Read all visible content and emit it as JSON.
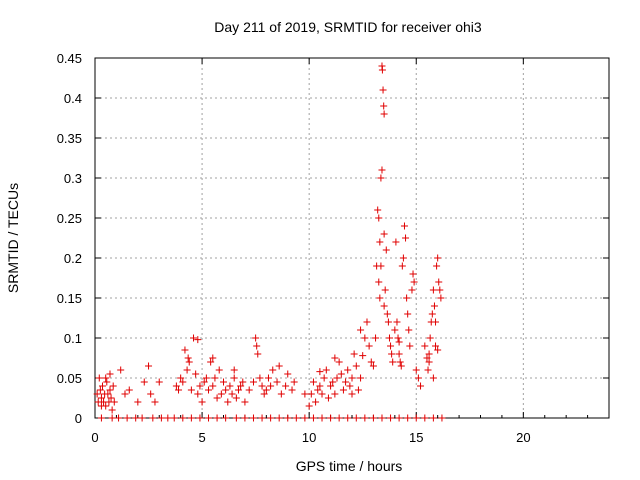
{
  "chart_data": {
    "type": "scatter",
    "title": "Day 211 of 2019, SRMTID for receiver ohi3",
    "xlabel": "GPS time / hours",
    "ylabel": "SRMTID / TECUs",
    "xlim": [
      0,
      24
    ],
    "ylim": [
      0,
      0.45
    ],
    "xticks": [
      0,
      5,
      10,
      15,
      20
    ],
    "yticks": [
      0,
      0.05,
      0.1,
      0.15,
      0.2,
      0.25,
      0.3,
      0.35,
      0.4,
      0.45
    ],
    "xtick_labels": [
      "0",
      "5",
      "10",
      "15",
      "20"
    ],
    "ytick_labels": [
      "0",
      "0.05",
      "0.1",
      "0.15",
      "0.2",
      "0.25",
      "0.3",
      "0.35",
      "0.4",
      "0.45"
    ],
    "grid": true,
    "marker": "+",
    "color": "#e00000",
    "series": [
      {
        "name": "SRMTID",
        "points": [
          [
            0.1,
            0.03
          ],
          [
            0.15,
            0.02
          ],
          [
            0.2,
            0.05
          ],
          [
            0.25,
            0.035
          ],
          [
            0.3,
            0.025
          ],
          [
            0.35,
            0.04
          ],
          [
            0.4,
            0.02
          ],
          [
            0.45,
            0.03
          ],
          [
            0.5,
            0.015
          ],
          [
            0.55,
            0.045
          ],
          [
            0.6,
            0.03
          ],
          [
            0.65,
            0.02
          ],
          [
            0.7,
            0.035
          ],
          [
            0.75,
            0.025
          ],
          [
            0.8,
            0.01
          ],
          [
            0.85,
            0.04
          ],
          [
            0.9,
            0.02
          ],
          [
            0.3,
            0.015
          ],
          [
            0.5,
            0.05
          ],
          [
            0.7,
            0.055
          ],
          [
            1.2,
            0.06
          ],
          [
            1.4,
            0.03
          ],
          [
            1.6,
            0.035
          ],
          [
            2.0,
            0.02
          ],
          [
            2.3,
            0.045
          ],
          [
            2.5,
            0.065
          ],
          [
            2.6,
            0.03
          ],
          [
            2.8,
            0.02
          ],
          [
            3.0,
            0.045
          ],
          [
            3.8,
            0.04
          ],
          [
            3.9,
            0.035
          ],
          [
            4.0,
            0.05
          ],
          [
            4.1,
            0.045
          ],
          [
            4.2,
            0.085
          ],
          [
            4.3,
            0.06
          ],
          [
            4.35,
            0.075
          ],
          [
            4.4,
            0.07
          ],
          [
            4.5,
            0.035
          ],
          [
            4.6,
            0.1
          ],
          [
            4.7,
            0.055
          ],
          [
            4.8,
            0.03
          ],
          [
            4.9,
            0.04
          ],
          [
            5.0,
            0.02
          ],
          [
            4.8,
            0.098
          ],
          [
            5.1,
            0.045
          ],
          [
            5.2,
            0.05
          ],
          [
            5.3,
            0.035
          ],
          [
            5.4,
            0.07
          ],
          [
            5.5,
            0.04
          ],
          [
            5.6,
            0.05
          ],
          [
            5.7,
            0.025
          ],
          [
            5.8,
            0.06
          ],
          [
            5.9,
            0.03
          ],
          [
            6.0,
            0.045
          ],
          [
            6.1,
            0.035
          ],
          [
            6.2,
            0.02
          ],
          [
            6.3,
            0.04
          ],
          [
            6.4,
            0.03
          ],
          [
            6.5,
            0.05
          ],
          [
            6.6,
            0.025
          ],
          [
            6.7,
            0.035
          ],
          [
            6.8,
            0.04
          ],
          [
            6.9,
            0.045
          ],
          [
            7.0,
            0.02
          ],
          [
            6.5,
            0.06
          ],
          [
            5.5,
            0.075
          ],
          [
            7.2,
            0.035
          ],
          [
            7.4,
            0.045
          ],
          [
            7.5,
            0.1
          ],
          [
            7.55,
            0.09
          ],
          [
            7.6,
            0.08
          ],
          [
            7.7,
            0.05
          ],
          [
            7.8,
            0.04
          ],
          [
            7.9,
            0.03
          ],
          [
            8.0,
            0.035
          ],
          [
            8.1,
            0.05
          ],
          [
            8.2,
            0.04
          ],
          [
            8.3,
            0.06
          ],
          [
            8.5,
            0.045
          ],
          [
            8.7,
            0.03
          ],
          [
            8.9,
            0.04
          ],
          [
            9.0,
            0.055
          ],
          [
            9.2,
            0.035
          ],
          [
            9.3,
            0.045
          ],
          [
            8.6,
            0.065
          ],
          [
            9.8,
            0.03
          ],
          [
            10.0,
            0.015
          ],
          [
            10.1,
            0.03
          ],
          [
            10.2,
            0.045
          ],
          [
            10.3,
            0.02
          ],
          [
            10.4,
            0.035
          ],
          [
            10.5,
            0.04
          ],
          [
            10.6,
            0.03
          ],
          [
            10.7,
            0.05
          ],
          [
            10.8,
            0.06
          ],
          [
            10.9,
            0.025
          ],
          [
            11.0,
            0.04
          ],
          [
            11.1,
            0.045
          ],
          [
            11.2,
            0.03
          ],
          [
            11.3,
            0.05
          ],
          [
            11.4,
            0.07
          ],
          [
            11.5,
            0.055
          ],
          [
            11.6,
            0.035
          ],
          [
            11.7,
            0.045
          ],
          [
            11.8,
            0.06
          ],
          [
            11.9,
            0.04
          ],
          [
            12.0,
            0.05
          ],
          [
            12.1,
            0.08
          ],
          [
            12.2,
            0.065
          ],
          [
            12.3,
            0.035
          ],
          [
            12.4,
            0.05
          ],
          [
            12.5,
            0.078
          ],
          [
            12.6,
            0.1
          ],
          [
            12.7,
            0.12
          ],
          [
            12.8,
            0.09
          ],
          [
            12.9,
            0.07
          ],
          [
            13.0,
            0.065
          ],
          [
            12.4,
            0.11
          ],
          [
            12.0,
            0.03
          ],
          [
            11.2,
            0.075
          ],
          [
            10.5,
            0.058
          ],
          [
            13.1,
            0.1
          ],
          [
            13.15,
            0.19
          ],
          [
            13.2,
            0.26
          ],
          [
            13.25,
            0.25
          ],
          [
            13.3,
            0.22
          ],
          [
            13.35,
            0.3
          ],
          [
            13.35,
            0.19
          ],
          [
            13.4,
            0.44
          ],
          [
            13.42,
            0.435
          ],
          [
            13.45,
            0.41
          ],
          [
            13.48,
            0.39
          ],
          [
            13.5,
            0.38
          ],
          [
            13.4,
            0.31
          ],
          [
            13.5,
            0.23
          ],
          [
            13.5,
            0.14
          ],
          [
            13.55,
            0.16
          ],
          [
            13.6,
            0.21
          ],
          [
            13.65,
            0.13
          ],
          [
            13.7,
            0.12
          ],
          [
            13.75,
            0.1
          ],
          [
            13.8,
            0.09
          ],
          [
            13.85,
            0.08
          ],
          [
            13.9,
            0.07
          ],
          [
            13.3,
            0.15
          ],
          [
            13.25,
            0.17
          ],
          [
            14.0,
            0.11
          ],
          [
            14.05,
            0.22
          ],
          [
            14.1,
            0.12
          ],
          [
            14.15,
            0.1
          ],
          [
            14.2,
            0.08
          ],
          [
            14.25,
            0.07
          ],
          [
            14.3,
            0.065
          ],
          [
            14.35,
            0.19
          ],
          [
            14.4,
            0.2
          ],
          [
            14.45,
            0.24
          ],
          [
            14.5,
            0.225
          ],
          [
            14.55,
            0.15
          ],
          [
            14.6,
            0.13
          ],
          [
            14.65,
            0.11
          ],
          [
            14.7,
            0.09
          ],
          [
            14.8,
            0.16
          ],
          [
            14.85,
            0.18
          ],
          [
            14.9,
            0.17
          ],
          [
            15.0,
            0.06
          ],
          [
            15.1,
            0.05
          ],
          [
            15.2,
            0.04
          ],
          [
            14.2,
            0.095
          ],
          [
            15.4,
            0.09
          ],
          [
            15.5,
            0.075
          ],
          [
            15.55,
            0.06
          ],
          [
            15.6,
            0.07
          ],
          [
            15.65,
            0.1
          ],
          [
            15.7,
            0.12
          ],
          [
            15.75,
            0.13
          ],
          [
            15.8,
            0.16
          ],
          [
            15.85,
            0.14
          ],
          [
            15.9,
            0.12
          ],
          [
            15.95,
            0.19
          ],
          [
            16.0,
            0.2
          ],
          [
            16.05,
            0.17
          ],
          [
            16.1,
            0.16
          ],
          [
            16.15,
            0.15
          ],
          [
            15.9,
            0.09
          ],
          [
            15.8,
            0.05
          ],
          [
            15.6,
            0.08
          ],
          [
            16.0,
            0.085
          ],
          [
            0.3,
            0
          ],
          [
            0.8,
            0
          ],
          [
            1.1,
            0
          ],
          [
            1.5,
            0
          ],
          [
            1.9,
            0
          ],
          [
            2.2,
            0
          ],
          [
            2.7,
            0
          ],
          [
            3.1,
            0
          ],
          [
            3.4,
            0
          ],
          [
            3.7,
            0
          ],
          [
            4.1,
            0
          ],
          [
            4.5,
            0
          ],
          [
            4.9,
            0
          ],
          [
            5.3,
            0
          ],
          [
            5.7,
            0
          ],
          [
            6.1,
            0
          ],
          [
            6.6,
            0
          ],
          [
            7.0,
            0
          ],
          [
            7.4,
            0
          ],
          [
            7.8,
            0
          ],
          [
            8.2,
            0
          ],
          [
            8.6,
            0
          ],
          [
            9.0,
            0
          ],
          [
            9.4,
            0
          ],
          [
            9.8,
            0
          ],
          [
            10.2,
            0
          ],
          [
            10.6,
            0
          ],
          [
            11.0,
            0
          ],
          [
            11.4,
            0
          ],
          [
            11.8,
            0
          ],
          [
            12.2,
            0
          ],
          [
            12.6,
            0
          ],
          [
            13.0,
            0
          ],
          [
            13.4,
            0
          ],
          [
            13.8,
            0
          ],
          [
            14.2,
            0
          ],
          [
            14.6,
            0
          ],
          [
            15.0,
            0
          ],
          [
            15.4,
            0
          ],
          [
            15.8,
            0
          ],
          [
            16.2,
            0
          ]
        ]
      }
    ]
  }
}
